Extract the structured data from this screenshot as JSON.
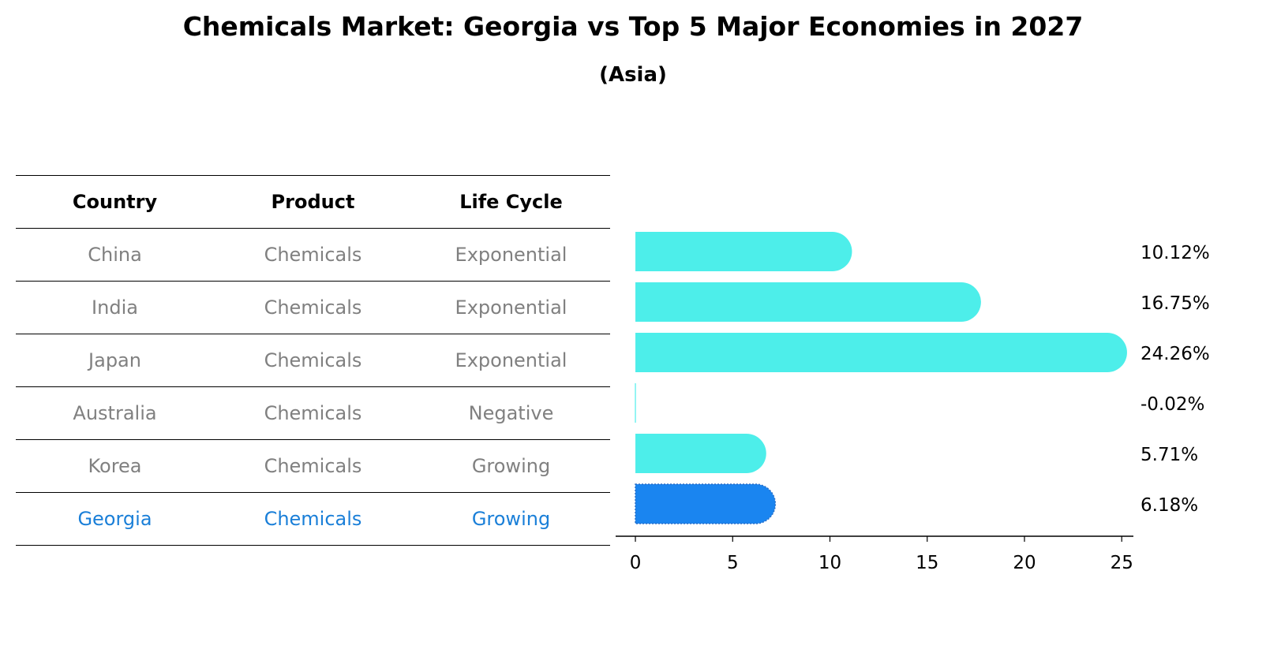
{
  "title": "Chemicals Market: Georgia vs Top 5 Major Economies in 2027",
  "subtitle": "(Asia)",
  "table": {
    "headers": [
      "Country",
      "Product",
      "Life Cycle"
    ],
    "rows": [
      {
        "country": "China",
        "product": "Chemicals",
        "life_cycle": "Exponential"
      },
      {
        "country": "India",
        "product": "Chemicals",
        "life_cycle": "Exponential"
      },
      {
        "country": "Japan",
        "product": "Chemicals",
        "life_cycle": "Exponential"
      },
      {
        "country": "Australia",
        "product": "Chemicals",
        "life_cycle": "Negative"
      },
      {
        "country": "Korea",
        "product": "Chemicals",
        "life_cycle": "Growing"
      },
      {
        "country": "Georgia",
        "product": "Chemicals",
        "life_cycle": "Growing"
      }
    ]
  },
  "chart_data": {
    "type": "bar",
    "orientation": "horizontal",
    "categories": [
      "China",
      "India",
      "Japan",
      "Australia",
      "Korea",
      "Georgia"
    ],
    "values": [
      10.12,
      16.75,
      24.26,
      -0.02,
      5.71,
      6.18
    ],
    "value_labels": [
      "10.12%",
      "16.75%",
      "24.26%",
      "-0.02%",
      "5.71%",
      "6.18%"
    ],
    "highlight": "Georgia",
    "xlim": [
      -1.3,
      25.6
    ],
    "xticks": [
      0,
      5,
      10,
      15,
      20,
      25
    ],
    "colors": {
      "default": "#4deeea",
      "highlight": "#1a85f0"
    }
  }
}
